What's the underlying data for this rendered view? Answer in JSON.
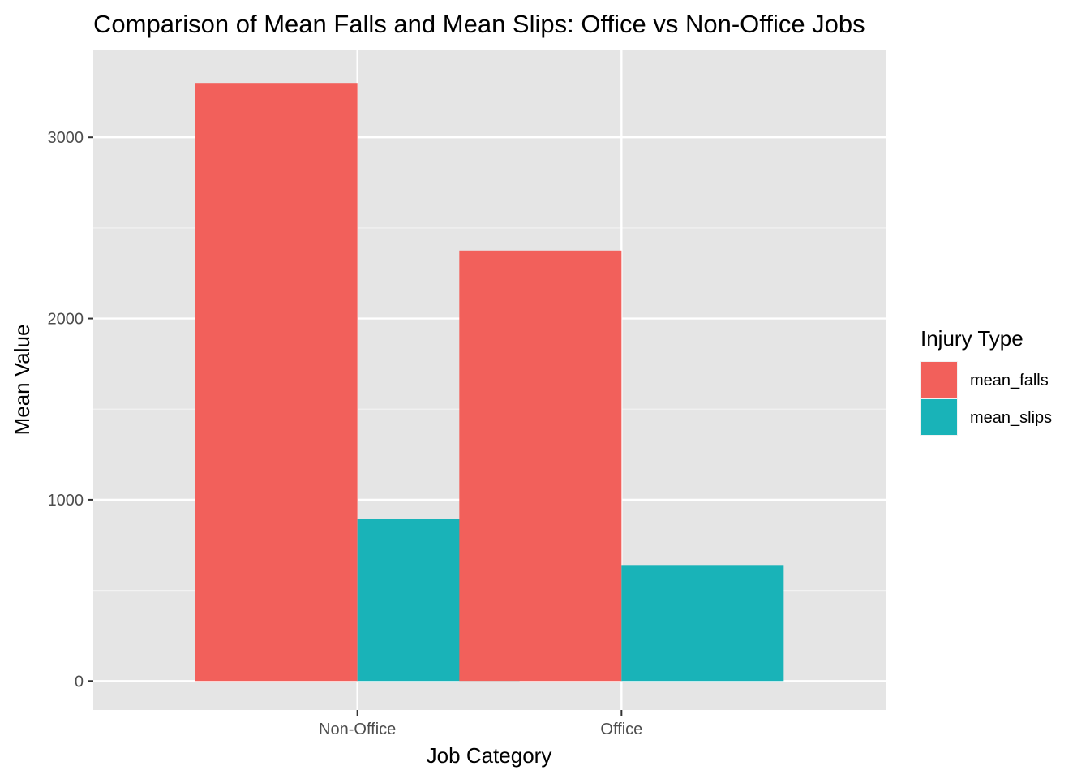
{
  "chart_data": {
    "type": "bar",
    "title": "Comparison of Mean Falls and Mean Slips: Office vs Non-Office Jobs",
    "xlabel": "Job Category",
    "ylabel": "Mean Value",
    "categories": [
      "Non-Office",
      "Office"
    ],
    "series": [
      {
        "name": "mean_falls",
        "color": "#F8766D",
        "values": [
          3300,
          2375
        ]
      },
      {
        "name": "mean_slips",
        "color": "#00BFC4",
        "values": [
          895,
          640
        ]
      }
    ],
    "ylim": [
      -160,
      3480
    ],
    "yticks": [
      0,
      1000,
      2000,
      3000
    ],
    "yticks_minor": [
      500,
      1500,
      2500
    ],
    "ytick_labels": [
      "0",
      "1000",
      "2000",
      "3000"
    ],
    "grid": true,
    "panel_background": "#EBEBEB",
    "bar_fill_rendered": {
      "mean_falls": "#F2605B",
      "mean_slips": "#19B3B8"
    },
    "legend": {
      "title": "Injury Type",
      "position": "right"
    }
  }
}
